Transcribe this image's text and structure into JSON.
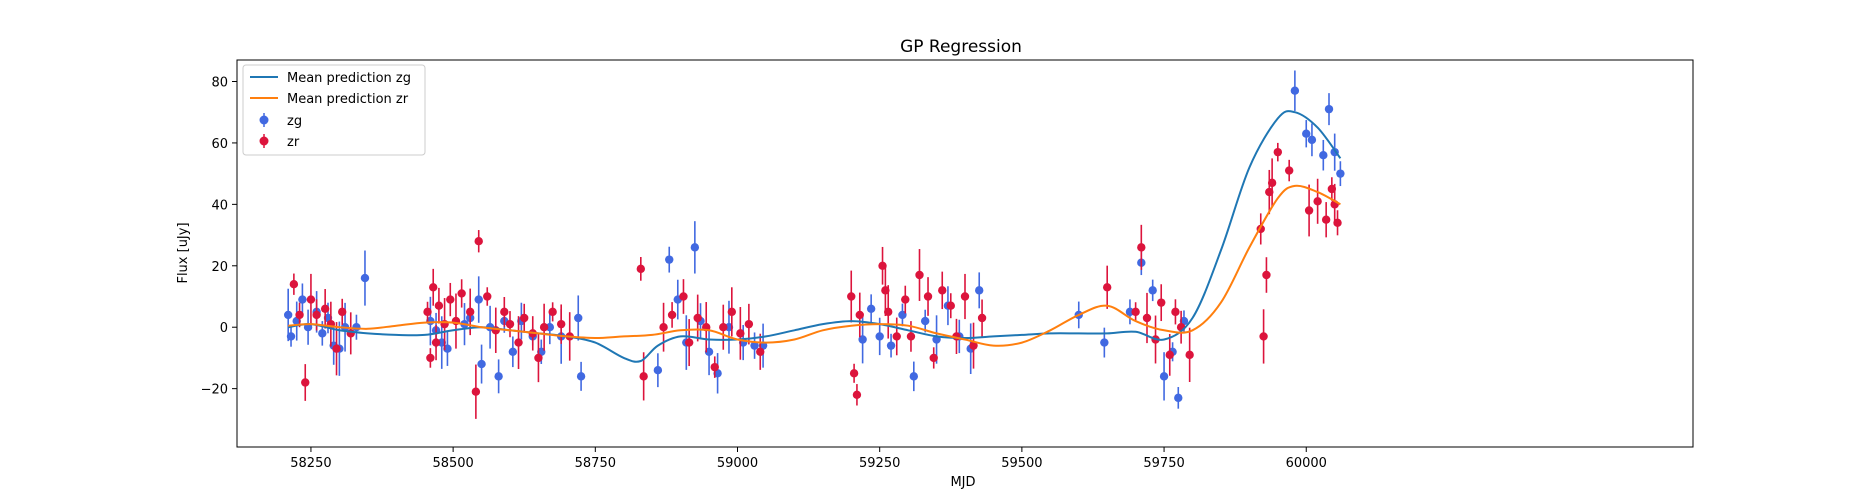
{
  "chart_data": {
    "type": "scatter",
    "title": "GP Regression",
    "xlabel": "MJD",
    "ylabel": "Flux [uJy]",
    "xlim": [
      58120,
      60680
    ],
    "ylim": [
      -39,
      87
    ],
    "xticks": [
      58250,
      58500,
      58750,
      59000,
      59250,
      59500,
      59750,
      60000
    ],
    "yticks": [
      -20,
      0,
      20,
      40,
      60,
      80
    ],
    "grid": false,
    "legend": "upper left",
    "legend_entries": [
      "Mean prediction zg",
      "Mean prediction zr",
      "zg",
      "zr"
    ],
    "colors": {
      "zg_line": "#1f77b4",
      "zr_line": "#ff7f0e",
      "zg_points": "#4169e1",
      "zr_points": "#dc143c"
    },
    "lines": [
      {
        "name": "Mean prediction zg",
        "x": [
          58210,
          58250,
          58300,
          58350,
          58400,
          58450,
          58500,
          58550,
          58600,
          58650,
          58700,
          58750,
          58800,
          58830,
          58860,
          58900,
          58950,
          59000,
          59050,
          59100,
          59150,
          59200,
          59250,
          59300,
          59350,
          59400,
          59450,
          59500,
          59550,
          59600,
          59650,
          59700,
          59750,
          59800,
          59850,
          59900,
          59950,
          59980,
          60020,
          60060
        ],
        "y": [
          0,
          1,
          -1,
          -2,
          -2.5,
          -2.5,
          -1,
          0,
          -1,
          -2,
          -3,
          -5,
          -10,
          -11,
          -6,
          -3,
          -4,
          -4,
          -3,
          -1,
          1,
          2,
          1,
          -1,
          -3,
          -3.5,
          -3,
          -2.5,
          -2,
          -2,
          -2,
          -1.5,
          -4,
          3,
          25,
          52,
          68,
          70,
          65,
          55
        ]
      },
      {
        "name": "Mean prediction zr",
        "x": [
          58210,
          58250,
          58300,
          58350,
          58400,
          58450,
          58500,
          58550,
          58600,
          58650,
          58700,
          58750,
          58800,
          58850,
          58900,
          58950,
          59000,
          59050,
          59100,
          59150,
          59200,
          59250,
          59300,
          59350,
          59400,
          59450,
          59500,
          59550,
          59600,
          59650,
          59700,
          59750,
          59800,
          59850,
          59900,
          59950,
          59980,
          60020,
          60060
        ],
        "y": [
          0.5,
          1,
          0,
          -0.5,
          0.5,
          1.5,
          1.5,
          0,
          -1,
          -2,
          -3,
          -3.5,
          -3,
          -2.5,
          -1,
          -1,
          -4,
          -5,
          -4,
          -1,
          0.5,
          1,
          0.5,
          -2,
          -4,
          -6,
          -5,
          -1,
          4,
          7,
          2,
          -1,
          -1,
          8,
          26,
          42,
          46,
          44,
          40
        ]
      }
    ],
    "series": [
      {
        "name": "zg",
        "x": [
          58210,
          58215,
          58225,
          58235,
          58245,
          58260,
          58270,
          58280,
          58290,
          58300,
          58310,
          58330,
          58345,
          58460,
          58470,
          58480,
          58490,
          58520,
          58530,
          58545,
          58550,
          58565,
          58580,
          58590,
          58605,
          58620,
          58640,
          58655,
          58670,
          58690,
          58720,
          58725,
          58860,
          58880,
          58895,
          58910,
          58925,
          58935,
          58950,
          58965,
          58985,
          59010,
          59030,
          59045,
          59220,
          59235,
          59250,
          59270,
          59290,
          59310,
          59330,
          59350,
          59370,
          59390,
          59410,
          59425,
          59600,
          59645,
          59690,
          59710,
          59730,
          59750,
          59765,
          59775,
          59785,
          59980,
          60000,
          60010,
          60030,
          60040,
          60050,
          60060
        ],
        "y": [
          4,
          -3,
          2,
          9,
          0,
          5,
          -2,
          3,
          -6,
          -7,
          0,
          0,
          16,
          2,
          -1,
          -5,
          -7,
          1,
          3,
          9,
          -12,
          0,
          -16,
          2,
          -8,
          2,
          -3,
          -8,
          0,
          -3,
          3,
          -16,
          -14,
          22,
          9,
          -5,
          26,
          2,
          -8,
          -15,
          0,
          -5,
          -6,
          -6,
          -4,
          6,
          -3,
          -6,
          4,
          -16,
          2,
          -4,
          7,
          -3,
          -7,
          12,
          4,
          -5,
          5,
          21,
          12,
          -16,
          -8,
          -23,
          2,
          77,
          63,
          61,
          56,
          71,
          57,
          50
        ]
      },
      {
        "name": "zr",
        "x": [
          58220,
          58230,
          58240,
          58250,
          58260,
          58275,
          58285,
          58295,
          58305,
          58320,
          58455,
          58460,
          58465,
          58470,
          58475,
          58485,
          58495,
          58505,
          58515,
          58530,
          58540,
          58545,
          58560,
          58575,
          58590,
          58600,
          58615,
          58625,
          58640,
          58650,
          58660,
          58675,
          58690,
          58705,
          58830,
          58835,
          58870,
          58885,
          58905,
          58915,
          58930,
          58945,
          58960,
          58975,
          58990,
          59005,
          59020,
          59040,
          59200,
          59205,
          59210,
          59215,
          59255,
          59260,
          59265,
          59280,
          59295,
          59305,
          59320,
          59335,
          59345,
          59360,
          59375,
          59385,
          59400,
          59415,
          59430,
          59650,
          59700,
          59710,
          59720,
          59735,
          59745,
          59760,
          59770,
          59780,
          59795,
          59920,
          59925,
          59930,
          59935,
          59940,
          59950,
          59970,
          60005,
          60020,
          60035,
          60045,
          60050,
          60055
        ],
        "y": [
          14,
          4,
          -18,
          9,
          4,
          6,
          1,
          -7,
          5,
          -2,
          5,
          -10,
          13,
          -5,
          7,
          1,
          9,
          2,
          11,
          5,
          -21,
          28,
          10,
          -1,
          5,
          1,
          -5,
          3,
          -2,
          -10,
          0,
          5,
          1,
          -3,
          19,
          -16,
          0,
          4,
          10,
          -5,
          3,
          0,
          -13,
          0,
          5,
          -2,
          1,
          -8,
          10,
          -15,
          -22,
          4,
          20,
          12,
          5,
          -3,
          9,
          -3,
          17,
          10,
          -10,
          12,
          7,
          -3,
          10,
          -6,
          3,
          13,
          5,
          26,
          3,
          -4,
          8,
          -9,
          5,
          0,
          -9,
          32,
          -3,
          17,
          44,
          47,
          57,
          51,
          38,
          41,
          35,
          45,
          40,
          34
        ]
      }
    ]
  }
}
